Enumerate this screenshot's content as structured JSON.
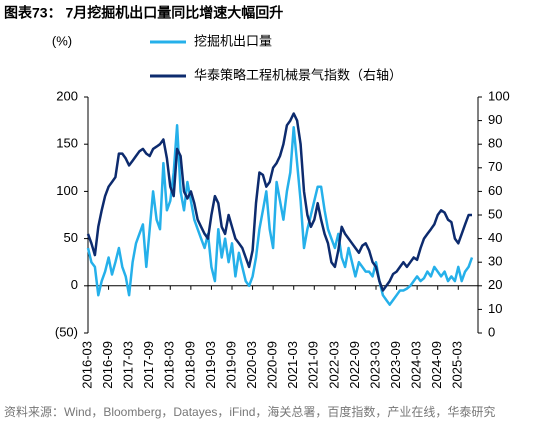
{
  "chart_data": {
    "type": "line",
    "title": "图表73： 7月挖掘机出口量同比增速大幅回升",
    "ylabel": "(%)",
    "source": "资料来源：Wind，Bloomberg，Datayes，iFind，海关总署，百度指数，产业在线，华泰研究",
    "legend": "top",
    "categories": [
      "2016-03",
      null,
      null,
      null,
      null,
      null,
      "2016-09",
      null,
      null,
      null,
      null,
      null,
      "2017-03",
      null,
      null,
      null,
      null,
      null,
      "2017-09",
      null,
      null,
      null,
      null,
      null,
      "2018-03",
      null,
      null,
      null,
      null,
      null,
      "2018-09",
      null,
      null,
      null,
      null,
      null,
      "2019-03",
      null,
      null,
      null,
      null,
      null,
      "2019-09",
      null,
      null,
      null,
      null,
      null,
      "2020-03",
      null,
      null,
      null,
      null,
      null,
      "2020-09",
      null,
      null,
      null,
      null,
      null,
      "2021-03",
      null,
      null,
      null,
      null,
      null,
      "2021-09",
      null,
      null,
      null,
      null,
      null,
      "2022-03",
      null,
      null,
      null,
      null,
      null,
      "2022-09",
      null,
      null,
      null,
      null,
      null,
      "2023-03",
      null,
      null,
      null,
      null,
      null,
      "2023-09",
      null,
      null,
      null,
      null,
      null,
      "2024-03",
      null,
      null,
      null,
      null,
      null,
      "2024-09",
      null,
      null,
      null,
      null,
      null,
      "2025-03",
      null,
      null,
      null,
      null
    ],
    "series": [
      {
        "name": "挖掘机出口量",
        "color": "#25b0ea",
        "values": [
          40,
          25,
          20,
          -10,
          5,
          15,
          30,
          12,
          25,
          40,
          20,
          10,
          -10,
          25,
          45,
          55,
          65,
          20,
          60,
          100,
          70,
          60,
          130,
          80,
          90,
          120,
          170,
          100,
          80,
          110,
          90,
          70,
          60,
          50,
          40,
          55,
          20,
          5,
          60,
          30,
          50,
          25,
          45,
          10,
          35,
          20,
          5,
          0,
          10,
          30,
          60,
          80,
          100,
          60,
          40,
          110,
          90,
          70,
          100,
          120,
          168,
          130,
          90,
          40,
          60,
          75,
          90,
          105,
          105,
          80,
          60,
          50,
          40,
          55,
          30,
          20,
          40,
          25,
          10,
          25,
          20,
          15,
          15,
          10,
          25,
          5,
          -10,
          -15,
          -20,
          -15,
          -10,
          -5,
          -5,
          -3,
          0,
          5,
          10,
          5,
          8,
          15,
          10,
          20,
          15,
          10,
          15,
          5,
          10,
          5,
          20,
          5,
          15,
          20,
          30
        ]
      },
      {
        "name": "华泰策略工程机械景气指数（右轴）",
        "color": "#0d2b6e",
        "axis": "y2",
        "values": [
          42,
          38,
          33,
          45,
          52,
          58,
          62,
          64,
          66,
          76,
          76,
          74,
          71,
          73,
          75,
          77,
          78,
          76,
          75,
          78,
          79,
          80,
          82,
          74,
          62,
          58,
          78,
          75,
          60,
          57,
          60,
          55,
          48,
          45,
          42,
          40,
          50,
          58,
          55,
          45,
          42,
          50,
          45,
          40,
          38,
          36,
          32,
          28,
          35,
          55,
          68,
          67,
          62,
          64,
          70,
          72,
          75,
          80,
          88,
          90,
          93,
          90,
          80,
          60,
          50,
          45,
          48,
          55,
          48,
          42,
          38,
          30,
          28,
          35,
          45,
          42,
          40,
          38,
          36,
          34,
          37,
          38,
          35,
          30,
          28,
          22,
          18,
          20,
          22,
          25,
          26,
          28,
          30,
          28,
          30,
          32,
          31,
          36,
          40,
          42,
          44,
          46,
          50,
          52,
          51,
          48,
          47,
          40,
          38,
          42,
          46,
          50,
          50
        ]
      }
    ],
    "ylim": [
      -50,
      200
    ],
    "yticks": [
      {
        "value": -50,
        "label": "(50)"
      },
      0,
      50,
      100,
      150,
      200
    ],
    "y2lim": [
      0,
      100
    ],
    "y2ticks": [
      0,
      10,
      20,
      30,
      40,
      50,
      60,
      70,
      80,
      90,
      100
    ]
  }
}
